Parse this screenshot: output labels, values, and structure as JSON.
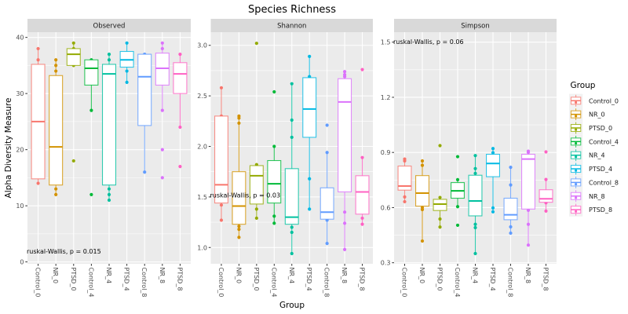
{
  "title": "Species Richness",
  "axes": {
    "ylabel": "Alpha Diversity Measure",
    "xlabel": "Group"
  },
  "legend": {
    "title": "Group",
    "position": "right",
    "items": [
      "Control_0",
      "NR_0",
      "PTSD_0",
      "Control_4",
      "NR_4",
      "PTSD_4",
      "Control_8",
      "NR_8",
      "PTSD_8"
    ]
  },
  "colors": {
    "Control_0": "#F8766D",
    "NR_0": "#D39200",
    "PTSD_0": "#93AA00",
    "Control_4": "#00BA38",
    "NR_4": "#00C19F",
    "PTSD_4": "#00B9E3",
    "Control_8": "#619CFF",
    "NR_8": "#DB72FB",
    "PTSD_8": "#FF61C3"
  },
  "chart_data": [
    {
      "type": "box",
      "title": "Observed",
      "xlabel": "Group",
      "ylabel": "Alpha Diversity Measure",
      "ylim": [
        -0.33,
        40.93
      ],
      "ytick_values": [
        0,
        10,
        20,
        30,
        40
      ],
      "yticks": [
        "0",
        "10",
        "20",
        "30",
        "40"
      ],
      "grid": true,
      "categories": [
        "Control_0",
        "NR_0",
        "PTSD_0",
        "Control_4",
        "NR_4",
        "PTSD_4",
        "Control_8",
        "NR_8",
        "PTSD_8"
      ],
      "annotation": {
        "text": "ruskal-Wallis, p = 0.015",
        "y": 1.91
      },
      "boxes": [
        {
          "group": "Control_0",
          "whisker_low": 14,
          "q1": 14.8,
          "median": 25,
          "q3": 35.2,
          "whisker_high": 38,
          "points": [
            38,
            36,
            14
          ]
        },
        {
          "group": "NR_0",
          "whisker_low": 12,
          "q1": 13.7,
          "median": 20.5,
          "q3": 33.2,
          "whisker_high": 36,
          "points": [
            36,
            35,
            34,
            13,
            12
          ]
        },
        {
          "group": "PTSD_0",
          "whisker_low": 35,
          "q1": 35,
          "median": 37,
          "q3": 38,
          "whisker_high": 39,
          "points": [
            39,
            38,
            35,
            18
          ]
        },
        {
          "group": "Control_4",
          "whisker_low": 27,
          "q1": 31.5,
          "median": 34.5,
          "q3": 36,
          "whisker_high": 36,
          "points": [
            36,
            27,
            12
          ]
        },
        {
          "group": "NR_4",
          "whisker_low": 11,
          "q1": 13.7,
          "median": 33.5,
          "q3": 35.2,
          "whisker_high": 37,
          "points": [
            37,
            36,
            13,
            12,
            11
          ]
        },
        {
          "group": "PTSD_4",
          "whisker_low": 32,
          "q1": 34.7,
          "median": 36,
          "q3": 37.5,
          "whisker_high": 39,
          "points": [
            39,
            34,
            32
          ]
        },
        {
          "group": "Control_8",
          "whisker_low": 16,
          "q1": 24.3,
          "median": 33,
          "q3": 37,
          "whisker_high": 37,
          "points": [
            37,
            16
          ]
        },
        {
          "group": "NR_8",
          "whisker_low": 27,
          "q1": 31.5,
          "median": 34.5,
          "q3": 37.2,
          "whisker_high": 39,
          "points": [
            39,
            38,
            27,
            20,
            15
          ]
        },
        {
          "group": "PTSD_8",
          "whisker_low": 24,
          "q1": 30,
          "median": 33.5,
          "q3": 35.5,
          "whisker_high": 37,
          "points": [
            37,
            24,
            17
          ]
        }
      ]
    },
    {
      "type": "box",
      "title": "Shannon",
      "xlabel": "Group",
      "ylabel": "Alpha Diversity Measure",
      "ylim": [
        0.839,
        3.13
      ],
      "ytick_values": [
        1.0,
        1.5,
        2.0,
        2.5,
        3.0
      ],
      "yticks": [
        "1.0",
        "1.5",
        "2.0",
        "2.5",
        "3.0"
      ],
      "grid": true,
      "categories": [
        "Control_0",
        "NR_0",
        "PTSD_0",
        "Control_4",
        "NR_4",
        "PTSD_4",
        "Control_8",
        "NR_8",
        "PTSD_8"
      ],
      "annotation": {
        "text": "ruskal-Wallis, p = 0.03",
        "y": 1.52
      },
      "boxes": [
        {
          "group": "Control_0",
          "whisker_low": 1.27,
          "q1": 1.44,
          "median": 1.62,
          "q3": 2.3,
          "whisker_high": 2.58,
          "points": [
            2.58,
            2.3,
            1.42,
            1.27
          ]
        },
        {
          "group": "NR_0",
          "whisker_low": 1.1,
          "q1": 1.23,
          "median": 1.41,
          "q3": 1.75,
          "whisker_high": 2.3,
          "points": [
            2.3,
            2.28,
            2.23,
            1.21,
            1.18,
            1.1
          ]
        },
        {
          "group": "PTSD_0",
          "whisker_low": 1.29,
          "q1": 1.43,
          "median": 1.71,
          "q3": 1.81,
          "whisker_high": 1.82,
          "points": [
            3.02,
            1.82,
            1.38,
            1.29
          ]
        },
        {
          "group": "Control_4",
          "whisker_low": 1.24,
          "q1": 1.44,
          "median": 1.63,
          "q3": 1.86,
          "whisker_high": 2.0,
          "points": [
            2.54,
            2.0,
            1.31,
            1.24
          ]
        },
        {
          "group": "NR_4",
          "whisker_low": 0.94,
          "q1": 1.23,
          "median": 1.3,
          "q3": 1.78,
          "whisker_high": 2.62,
          "points": [
            2.62,
            2.26,
            2.09,
            1.2,
            1.15,
            0.94
          ]
        },
        {
          "group": "PTSD_4",
          "whisker_low": 1.38,
          "q1": 2.09,
          "median": 2.37,
          "q3": 2.68,
          "whisker_high": 2.89,
          "points": [
            2.89,
            2.69,
            1.68,
            1.38
          ]
        },
        {
          "group": "Control_8",
          "whisker_low": 1.04,
          "q1": 1.28,
          "median": 1.35,
          "q3": 1.59,
          "whisker_high": 1.94,
          "points": [
            2.21,
            1.94,
            1.27,
            1.04
          ]
        },
        {
          "group": "NR_8",
          "whisker_low": 0.98,
          "q1": 1.55,
          "median": 2.44,
          "q3": 2.67,
          "whisker_high": 2.74,
          "points": [
            2.74,
            2.71,
            2.69,
            1.35,
            1.24,
            0.98
          ]
        },
        {
          "group": "PTSD_8",
          "whisker_low": 1.23,
          "q1": 1.33,
          "median": 1.55,
          "q3": 1.71,
          "whisker_high": 1.89,
          "points": [
            2.76,
            1.89,
            1.29,
            1.23
          ]
        }
      ]
    },
    {
      "type": "box",
      "title": "Simpson",
      "xlabel": "Group",
      "ylabel": "Alpha Diversity Measure",
      "ylim": [
        0.2944,
        1.5542
      ],
      "ytick_values": [
        0.3,
        0.6,
        0.9,
        1.2,
        1.5
      ],
      "yticks": [
        "0.3",
        "0.6",
        "0.9",
        "1.2",
        "1.5"
      ],
      "grid": true,
      "categories": [
        "Control_0",
        "NR_0",
        "PTSD_0",
        "Control_4",
        "NR_4",
        "PTSD_4",
        "Control_8",
        "NR_8",
        "PTSD_8"
      ],
      "annotation": {
        "text": "ruskal-Wallis, p = 0.06",
        "y": 1.504
      },
      "boxes": [
        {
          "group": "Control_0",
          "whisker_low": 0.632,
          "q1": 0.695,
          "median": 0.717,
          "q3": 0.826,
          "whisker_high": 0.864,
          "points": [
            0.864,
            0.854,
            0.658,
            0.632
          ]
        },
        {
          "group": "NR_0",
          "whisker_low": 0.418,
          "q1": 0.608,
          "median": 0.679,
          "q3": 0.774,
          "whisker_high": 0.854,
          "points": [
            0.854,
            0.83,
            0.6,
            0.589,
            0.418
          ]
        },
        {
          "group": "PTSD_0",
          "whisker_low": 0.494,
          "q1": 0.584,
          "median": 0.619,
          "q3": 0.645,
          "whisker_high": 0.655,
          "points": [
            0.937,
            0.655,
            0.538,
            0.494
          ]
        },
        {
          "group": "Control_4",
          "whisker_low": 0.605,
          "q1": 0.651,
          "median": 0.691,
          "q3": 0.736,
          "whisker_high": 0.752,
          "points": [
            0.877,
            0.752,
            0.605,
            0.504
          ]
        },
        {
          "group": "NR_4",
          "whisker_low": 0.35,
          "q1": 0.555,
          "median": 0.636,
          "q3": 0.776,
          "whisker_high": 0.883,
          "points": [
            0.883,
            0.812,
            0.786,
            0.509,
            0.491,
            0.35
          ]
        },
        {
          "group": "PTSD_4",
          "whisker_low": 0.577,
          "q1": 0.768,
          "median": 0.84,
          "q3": 0.89,
          "whisker_high": 0.921,
          "points": [
            0.921,
            0.898,
            0.598,
            0.577
          ]
        },
        {
          "group": "Control_8",
          "whisker_low": 0.461,
          "q1": 0.534,
          "median": 0.561,
          "q3": 0.651,
          "whisker_high": 0.819,
          "points": [
            0.819,
            0.723,
            0.495,
            0.461
          ]
        },
        {
          "group": "NR_8",
          "whisker_low": 0.396,
          "q1": 0.592,
          "median": 0.864,
          "q3": 0.89,
          "whisker_high": 0.907,
          "points": [
            0.907,
            0.9,
            0.585,
            0.509,
            0.396
          ]
        },
        {
          "group": "PTSD_8",
          "whisker_low": 0.581,
          "q1": 0.629,
          "median": 0.648,
          "q3": 0.697,
          "whisker_high": 0.753,
          "points": [
            0.903,
            0.753,
            0.626,
            0.581
          ]
        }
      ]
    }
  ]
}
